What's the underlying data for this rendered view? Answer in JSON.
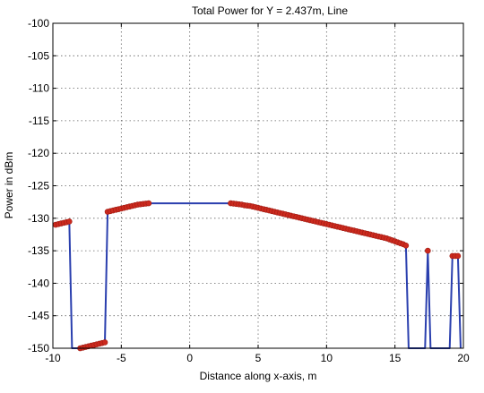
{
  "chart_data": {
    "type": "line",
    "title": "Total Power for Y = 2.437m, Line",
    "xlabel": "Distance along x-axis, m",
    "ylabel": "Power in dBm",
    "xlim": [
      -10,
      20
    ],
    "ylim": [
      -150,
      -100
    ],
    "x_ticks": [
      -10,
      -5,
      0,
      5,
      10,
      15,
      20
    ],
    "y_ticks": [
      -100,
      -105,
      -110,
      -115,
      -120,
      -125,
      -130,
      -135,
      -140,
      -145,
      -150
    ],
    "x_tick_labels": [
      "-10",
      "-5",
      "0",
      "5",
      "10",
      "15",
      "20"
    ],
    "y_tick_labels": [
      "-100",
      "-105",
      "-110",
      "-115",
      "-120",
      "-125",
      "-130",
      "-135",
      "-140",
      "-145",
      "-150"
    ],
    "grid": true,
    "line_color": "#2a3fae",
    "marker_color": "#cc2a1e",
    "series": [
      {
        "points": [
          [
            -9.8,
            -131.0
          ],
          [
            -9.6,
            -130.9
          ],
          [
            -9.4,
            -130.8
          ],
          [
            -9.2,
            -130.7
          ],
          [
            -9.0,
            -130.6
          ],
          [
            -8.8,
            -130.5
          ],
          [
            -8.6,
            -150.0
          ],
          [
            -8.0,
            -150.0
          ],
          [
            -7.8,
            -149.9
          ],
          [
            -7.6,
            -149.8
          ],
          [
            -7.4,
            -149.7
          ],
          [
            -7.2,
            -149.6
          ],
          [
            -7.0,
            -149.5
          ],
          [
            -6.8,
            -149.4
          ],
          [
            -6.6,
            -149.3
          ],
          [
            -6.4,
            -149.2
          ],
          [
            -6.2,
            -149.1
          ],
          [
            -6.0,
            -129.0
          ],
          [
            -5.8,
            -128.9
          ],
          [
            -5.6,
            -128.8
          ],
          [
            -5.4,
            -128.7
          ],
          [
            -5.2,
            -128.6
          ],
          [
            -5.0,
            -128.5
          ],
          [
            -4.8,
            -128.4
          ],
          [
            -4.6,
            -128.3
          ],
          [
            -4.4,
            -128.2
          ],
          [
            -4.2,
            -128.1
          ],
          [
            -4.0,
            -128.0
          ],
          [
            -3.8,
            -127.9
          ],
          [
            -3.6,
            -127.85
          ],
          [
            -3.4,
            -127.8
          ],
          [
            -3.2,
            -127.75
          ],
          [
            -3.0,
            -127.7
          ],
          [
            3.0,
            -127.7
          ],
          [
            3.2,
            -127.75
          ],
          [
            3.4,
            -127.8
          ],
          [
            3.6,
            -127.85
          ],
          [
            3.8,
            -127.9
          ],
          [
            4.0,
            -128.0
          ],
          [
            4.2,
            -128.05
          ],
          [
            4.4,
            -128.1
          ],
          [
            4.6,
            -128.2
          ],
          [
            4.8,
            -128.3
          ],
          [
            5.0,
            -128.4
          ],
          [
            5.2,
            -128.5
          ],
          [
            5.4,
            -128.6
          ],
          [
            5.6,
            -128.7
          ],
          [
            5.8,
            -128.8
          ],
          [
            6.0,
            -128.9
          ],
          [
            6.2,
            -129.0
          ],
          [
            6.4,
            -129.1
          ],
          [
            6.6,
            -129.2
          ],
          [
            6.8,
            -129.3
          ],
          [
            7.0,
            -129.4
          ],
          [
            7.2,
            -129.5
          ],
          [
            7.4,
            -129.6
          ],
          [
            7.6,
            -129.7
          ],
          [
            7.8,
            -129.8
          ],
          [
            8.0,
            -129.9
          ],
          [
            8.2,
            -130.0
          ],
          [
            8.4,
            -130.1
          ],
          [
            8.6,
            -130.2
          ],
          [
            8.8,
            -130.3
          ],
          [
            9.0,
            -130.4
          ],
          [
            9.2,
            -130.5
          ],
          [
            9.4,
            -130.6
          ],
          [
            9.6,
            -130.7
          ],
          [
            9.8,
            -130.8
          ],
          [
            10.0,
            -130.9
          ],
          [
            10.2,
            -131.0
          ],
          [
            10.4,
            -131.1
          ],
          [
            10.6,
            -131.2
          ],
          [
            10.8,
            -131.3
          ],
          [
            11.0,
            -131.4
          ],
          [
            11.2,
            -131.5
          ],
          [
            11.4,
            -131.6
          ],
          [
            11.6,
            -131.7
          ],
          [
            11.8,
            -131.8
          ],
          [
            12.0,
            -131.9
          ],
          [
            12.2,
            -132.0
          ],
          [
            12.4,
            -132.1
          ],
          [
            12.6,
            -132.2
          ],
          [
            12.8,
            -132.3
          ],
          [
            13.0,
            -132.4
          ],
          [
            13.2,
            -132.5
          ],
          [
            13.4,
            -132.6
          ],
          [
            13.6,
            -132.7
          ],
          [
            13.8,
            -132.8
          ],
          [
            14.0,
            -132.9
          ],
          [
            14.2,
            -133.0
          ],
          [
            14.4,
            -133.1
          ],
          [
            14.6,
            -133.25
          ],
          [
            14.8,
            -133.4
          ],
          [
            15.0,
            -133.55
          ],
          [
            15.2,
            -133.7
          ],
          [
            15.4,
            -133.85
          ],
          [
            15.6,
            -134.0
          ],
          [
            15.8,
            -134.2
          ],
          [
            16.0,
            -150.0
          ],
          [
            17.2,
            -150.0
          ],
          [
            17.4,
            -135.0
          ],
          [
            17.6,
            -150.0
          ],
          [
            19.0,
            -150.0
          ],
          [
            19.2,
            -135.8
          ],
          [
            19.4,
            -135.8
          ],
          [
            19.6,
            -135.8
          ],
          [
            19.8,
            -150.0
          ]
        ]
      }
    ],
    "markers": [
      [
        -9.8,
        -131.0
      ],
      [
        -9.6,
        -130.9
      ],
      [
        -9.4,
        -130.8
      ],
      [
        -9.2,
        -130.7
      ],
      [
        -9.0,
        -130.6
      ],
      [
        -8.8,
        -130.5
      ],
      [
        -8.0,
        -150.0
      ],
      [
        -7.8,
        -149.9
      ],
      [
        -7.6,
        -149.8
      ],
      [
        -7.4,
        -149.7
      ],
      [
        -7.2,
        -149.6
      ],
      [
        -7.0,
        -149.5
      ],
      [
        -6.8,
        -149.4
      ],
      [
        -6.6,
        -149.3
      ],
      [
        -6.4,
        -149.2
      ],
      [
        -6.2,
        -149.1
      ],
      [
        -6.0,
        -129.0
      ],
      [
        -5.8,
        -128.9
      ],
      [
        -5.6,
        -128.8
      ],
      [
        -5.4,
        -128.7
      ],
      [
        -5.2,
        -128.6
      ],
      [
        -5.0,
        -128.5
      ],
      [
        -4.8,
        -128.4
      ],
      [
        -4.6,
        -128.3
      ],
      [
        -4.4,
        -128.2
      ],
      [
        -4.2,
        -128.1
      ],
      [
        -4.0,
        -128.0
      ],
      [
        -3.8,
        -127.9
      ],
      [
        -3.6,
        -127.85
      ],
      [
        -3.4,
        -127.8
      ],
      [
        -3.2,
        -127.75
      ],
      [
        -3.0,
        -127.7
      ],
      [
        3.0,
        -127.7
      ],
      [
        3.2,
        -127.75
      ],
      [
        3.4,
        -127.8
      ],
      [
        3.6,
        -127.85
      ],
      [
        3.8,
        -127.9
      ],
      [
        4.0,
        -128.0
      ],
      [
        4.2,
        -128.05
      ],
      [
        4.4,
        -128.1
      ],
      [
        4.6,
        -128.2
      ],
      [
        4.8,
        -128.3
      ],
      [
        5.0,
        -128.4
      ],
      [
        5.2,
        -128.5
      ],
      [
        5.4,
        -128.6
      ],
      [
        5.6,
        -128.7
      ],
      [
        5.8,
        -128.8
      ],
      [
        6.0,
        -128.9
      ],
      [
        6.2,
        -129.0
      ],
      [
        6.4,
        -129.1
      ],
      [
        6.6,
        -129.2
      ],
      [
        6.8,
        -129.3
      ],
      [
        7.0,
        -129.4
      ],
      [
        7.2,
        -129.5
      ],
      [
        7.4,
        -129.6
      ],
      [
        7.6,
        -129.7
      ],
      [
        7.8,
        -129.8
      ],
      [
        8.0,
        -129.9
      ],
      [
        8.2,
        -130.0
      ],
      [
        8.4,
        -130.1
      ],
      [
        8.6,
        -130.2
      ],
      [
        8.8,
        -130.3
      ],
      [
        9.0,
        -130.4
      ],
      [
        9.2,
        -130.5
      ],
      [
        9.4,
        -130.6
      ],
      [
        9.6,
        -130.7
      ],
      [
        9.8,
        -130.8
      ],
      [
        10.0,
        -130.9
      ],
      [
        10.2,
        -131.0
      ],
      [
        10.4,
        -131.1
      ],
      [
        10.6,
        -131.2
      ],
      [
        10.8,
        -131.3
      ],
      [
        11.0,
        -131.4
      ],
      [
        11.2,
        -131.5
      ],
      [
        11.4,
        -131.6
      ],
      [
        11.6,
        -131.7
      ],
      [
        11.8,
        -131.8
      ],
      [
        12.0,
        -131.9
      ],
      [
        12.2,
        -132.0
      ],
      [
        12.4,
        -132.1
      ],
      [
        12.6,
        -132.2
      ],
      [
        12.8,
        -132.3
      ],
      [
        13.0,
        -132.4
      ],
      [
        13.2,
        -132.5
      ],
      [
        13.4,
        -132.6
      ],
      [
        13.6,
        -132.7
      ],
      [
        13.8,
        -132.8
      ],
      [
        14.0,
        -132.9
      ],
      [
        14.2,
        -133.0
      ],
      [
        14.4,
        -133.1
      ],
      [
        14.6,
        -133.25
      ],
      [
        14.8,
        -133.4
      ],
      [
        15.0,
        -133.55
      ],
      [
        15.2,
        -133.7
      ],
      [
        15.4,
        -133.85
      ],
      [
        15.6,
        -134.0
      ],
      [
        15.8,
        -134.2
      ],
      [
        17.4,
        -135.0
      ],
      [
        19.2,
        -135.8
      ],
      [
        19.4,
        -135.8
      ],
      [
        19.6,
        -135.8
      ]
    ]
  }
}
